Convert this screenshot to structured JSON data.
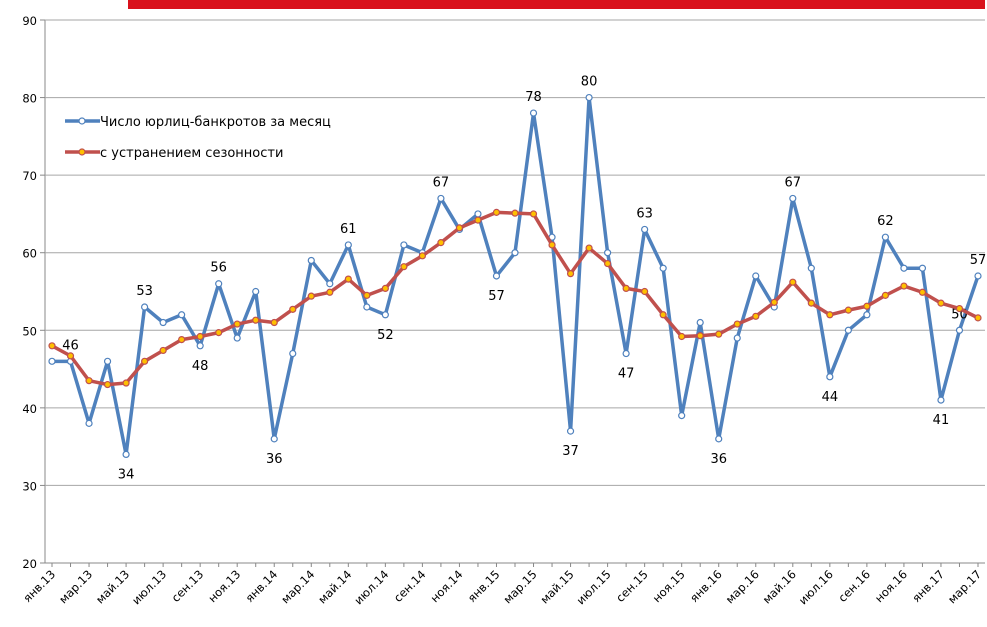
{
  "chart_data": {
    "type": "line",
    "categories": [
      "янв.13",
      null,
      "мар.13",
      null,
      "май.13",
      null,
      "июл.13",
      null,
      "сен.13",
      null,
      "ноя.13",
      null,
      "янв.14",
      null,
      "мар.14",
      null,
      "май.14",
      null,
      "июл.14",
      null,
      "сен.14",
      null,
      "ноя.14",
      null,
      "янв.15",
      null,
      "мар.15",
      null,
      "май.15",
      null,
      "июл.15",
      null,
      "сен.15",
      null,
      "ноя.15",
      null,
      "янв.16",
      null,
      "мар.16",
      null,
      "май.16",
      null,
      "июл.16",
      null,
      "сен.16",
      null,
      "ноя.16",
      null,
      "янв.17",
      null,
      "мар.17"
    ],
    "series": [
      {
        "name": "Число юрлиц-банкротов за месяц",
        "color": "#4f81bd",
        "marker_fill": "#ffffff",
        "values": [
          46,
          46,
          38,
          46,
          34,
          53,
          51,
          52,
          48,
          56,
          49,
          55,
          36,
          47,
          59,
          56,
          61,
          53,
          52,
          61,
          60,
          67,
          63,
          65,
          57,
          60,
          78,
          62,
          37,
          80,
          60,
          47,
          63,
          58,
          39,
          51,
          36,
          49,
          57,
          53,
          67,
          58,
          44,
          50,
          52,
          62,
          58,
          58,
          41,
          50,
          57
        ],
        "value_labels": [
          null,
          "46",
          null,
          null,
          "34",
          "53",
          null,
          null,
          "48",
          "56",
          null,
          null,
          "36",
          null,
          null,
          null,
          "61",
          null,
          "52",
          null,
          null,
          "67",
          null,
          null,
          "57",
          null,
          "78",
          null,
          "37",
          "80",
          null,
          "47",
          "63",
          null,
          null,
          null,
          "36",
          null,
          null,
          null,
          "67",
          null,
          "44",
          null,
          null,
          "62",
          null,
          null,
          "41",
          "50",
          "57"
        ]
      },
      {
        "name": "с устранением сезонности",
        "color": "#c0504d",
        "marker_fill": "#ffc000",
        "values": [
          48,
          46.7,
          43.5,
          43,
          43.2,
          46,
          47.4,
          48.8,
          49.2,
          49.7,
          50.8,
          51.3,
          51,
          52.7,
          54.4,
          54.9,
          56.6,
          54.5,
          55.4,
          58.2,
          59.6,
          61.3,
          63.2,
          64.2,
          65.2,
          65.1,
          65,
          61,
          57.3,
          60.6,
          58.6,
          55.4,
          55,
          52,
          49.2,
          49.3,
          49.5,
          50.8,
          51.8,
          53.6,
          56.2,
          53.5,
          52,
          52.6,
          53.1,
          54.5,
          55.7,
          54.9,
          53.5,
          52.8,
          51.6
        ]
      }
    ],
    "ylim": [
      20,
      90
    ],
    "yticks": [
      20,
      30,
      40,
      50,
      60,
      70,
      80,
      90
    ],
    "grid": true,
    "legend": "upper left"
  }
}
